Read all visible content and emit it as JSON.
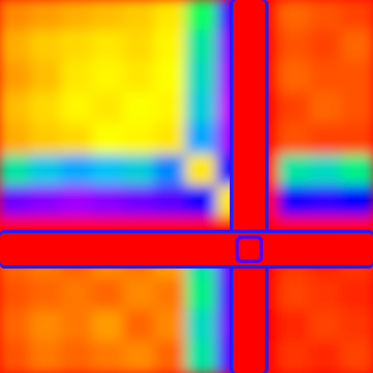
{
  "chart_data": {
    "type": "heatmap",
    "title": "",
    "xlabel": "",
    "ylabel": "",
    "colormap": "rainbow",
    "colormap_stops": [
      "#ff00ff",
      "#7a00ff",
      "#0000ff",
      "#00bfff",
      "#00ff66",
      "#d8ff00",
      "#ffff00",
      "#ffb000",
      "#ff4a00",
      "#ff0000"
    ],
    "rows": 12,
    "cols": 12,
    "values": [
      [
        0.82,
        0.8,
        0.78,
        0.76,
        0.74,
        0.7,
        0.45,
        0.15,
        1.0,
        0.86,
        0.88,
        0.9
      ],
      [
        0.78,
        0.74,
        0.72,
        0.7,
        0.72,
        0.68,
        0.4,
        0.1,
        1.0,
        0.88,
        0.9,
        0.86
      ],
      [
        0.8,
        0.76,
        0.7,
        0.68,
        0.7,
        0.66,
        0.38,
        0.08,
        1.0,
        0.86,
        0.88,
        0.88
      ],
      [
        0.76,
        0.72,
        0.68,
        0.7,
        0.66,
        0.68,
        0.36,
        0.06,
        1.0,
        0.9,
        0.86,
        0.88
      ],
      [
        0.78,
        0.74,
        0.72,
        0.66,
        0.68,
        0.7,
        0.32,
        0.08,
        1.0,
        0.88,
        0.9,
        0.9
      ],
      [
        0.4,
        0.35,
        0.32,
        0.34,
        0.36,
        0.3,
        0.7,
        0.2,
        1.0,
        0.4,
        0.38,
        0.42
      ],
      [
        0.12,
        0.1,
        0.08,
        0.1,
        0.12,
        0.14,
        0.2,
        0.7,
        1.0,
        0.2,
        0.18,
        0.22
      ],
      [
        1.0,
        1.0,
        1.0,
        1.0,
        1.0,
        1.0,
        1.0,
        1.0,
        1.0,
        1.0,
        1.0,
        1.0
      ],
      [
        0.86,
        0.84,
        0.86,
        0.82,
        0.84,
        0.8,
        0.4,
        0.12,
        1.0,
        0.92,
        0.94,
        0.92
      ],
      [
        0.88,
        0.86,
        0.84,
        0.86,
        0.82,
        0.84,
        0.42,
        0.14,
        1.0,
        0.9,
        0.92,
        0.94
      ],
      [
        0.86,
        0.82,
        0.84,
        0.8,
        0.86,
        0.82,
        0.38,
        0.12,
        1.0,
        0.94,
        0.9,
        0.92
      ],
      [
        0.88,
        0.84,
        0.86,
        0.84,
        0.82,
        0.86,
        0.4,
        0.14,
        1.0,
        0.92,
        0.94,
        0.9
      ]
    ],
    "grid": false,
    "legend": "none"
  }
}
